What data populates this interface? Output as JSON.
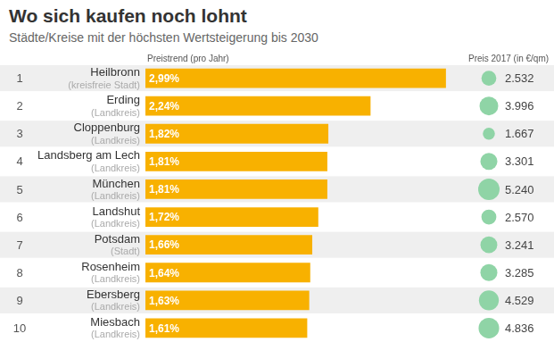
{
  "chart_data": {
    "type": "bar",
    "title": "Wo sich kaufen noch lohnt",
    "subtitle": "Städte/Kreise mit der höchsten Wertsteigerung bis 2030",
    "orientation": "horizontal",
    "data_labels": true,
    "grid": false,
    "tick_labels": false,
    "color": "#f8b100",
    "value_axis_label": "Preistrend (pro Jahr)",
    "ranks": [
      1,
      2,
      3,
      4,
      5,
      6,
      7,
      8,
      9,
      10
    ],
    "categories": [
      "Heilbronn",
      "Erding",
      "Cloppenburg",
      "Landsberg am Lech",
      "München",
      "Landshut",
      "Potsdam",
      "Rosenheim",
      "Ebersberg",
      "Miesbach"
    ],
    "category_types": [
      "(kreisfreie Stadt)",
      "(Landkreis)",
      "(Landkreis)",
      "(Landkreis)",
      "(Landkreis)",
      "(Landkreis)",
      "(Stadt)",
      "(Landkreis)",
      "(Landkreis)",
      "(Landkreis)"
    ],
    "values": [
      2.99,
      2.24,
      1.82,
      1.81,
      1.81,
      1.72,
      1.66,
      1.64,
      1.63,
      1.61
    ],
    "value_labels": [
      "2,99%",
      "2,24%",
      "1,82%",
      "1,81%",
      "1,81%",
      "1,72%",
      "1,66%",
      "1,64%",
      "1,63%",
      "1,61%"
    ],
    "xlim": [
      0,
      3
    ],
    "price_label": "Preis 2017 (in €/qm)",
    "price_color": "#8fd4a6",
    "prices": [
      2532,
      3996,
      1667,
      3301,
      5240,
      2570,
      3241,
      3285,
      4529,
      4836
    ],
    "price_labels": [
      "2.532",
      "3.996",
      "1.667",
      "3.301",
      "5.240",
      "2.570",
      "3.241",
      "3.285",
      "4.529",
      "4.836"
    ]
  }
}
